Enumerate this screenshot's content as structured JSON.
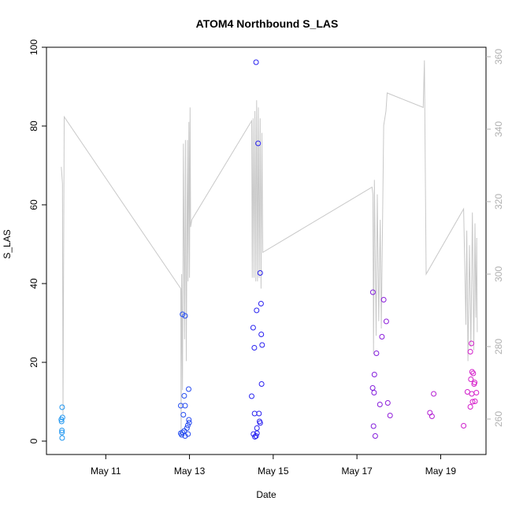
{
  "chart_data": {
    "type": "scatter",
    "title": "ATOM4 Northbound S_LAS",
    "xlabel": "Date",
    "ylabel": "S_LAS",
    "x_tick_labels": [
      "May 11",
      "May 13",
      "May 15",
      "May 17",
      "May 19"
    ],
    "x_ticks": [
      "2020-05-11",
      "2020-05-13",
      "2020-05-15",
      "2020-05-17",
      "2020-05-19"
    ],
    "xlim": [
      "2020-05-09 14:00",
      "2020-05-20 02:00"
    ],
    "ylim": [
      0,
      100
    ],
    "y_ticks": [
      0,
      20,
      40,
      60,
      80,
      100
    ],
    "y2lim": [
      250,
      360
    ],
    "y2_ticks": [
      260,
      280,
      300,
      320,
      340,
      360
    ],
    "grid": false,
    "colors": {
      "line": "#c8c8c8",
      "point_start": "#1e9ff0",
      "point_mid": "#2a1cf0",
      "point_end": "#e01ec8",
      "axis": "#000000",
      "right_axis": "#b0b0b0"
    },
    "series": [
      {
        "axis": "left",
        "kind": "points",
        "points": [
          [
            "2020-05-09 23:00",
            8.6
          ],
          [
            "2020-05-09 23:10",
            6.0
          ],
          [
            "2020-05-09 22:30",
            5.5
          ],
          [
            "2020-05-09 22:40",
            5.0
          ],
          [
            "2020-05-09 22:50",
            2.7
          ],
          [
            "2020-05-09 22:50",
            2.2
          ],
          [
            "2020-05-09 23:00",
            0.8
          ],
          [
            "2020-05-12 19:00",
            9.0
          ],
          [
            "2020-05-12 21:00",
            11.5
          ],
          [
            "2020-05-12 23:30",
            13.2
          ],
          [
            "2020-05-12 21:30",
            9.0
          ],
          [
            "2020-05-12 20:30",
            6.7
          ],
          [
            "2020-05-12 23:40",
            5.4
          ],
          [
            "2020-05-12 23:50",
            4.7
          ],
          [
            "2020-05-12 23:00",
            4.0
          ],
          [
            "2020-05-12 22:30",
            3.3
          ],
          [
            "2020-05-12 21:00",
            2.6
          ],
          [
            "2020-05-12 20:00",
            2.2
          ],
          [
            "2020-05-12 19:00",
            2.0
          ],
          [
            "2020-05-12 19:30",
            1.6
          ],
          [
            "2020-05-12 23:10",
            1.8
          ],
          [
            "2020-05-12 21:30",
            1.3
          ],
          [
            "2020-05-12 20:00",
            32.2
          ],
          [
            "2020-05-12 21:30",
            31.8
          ],
          [
            "2020-05-14 14:10",
            96.2
          ],
          [
            "2020-05-14 15:20",
            75.6
          ],
          [
            "2020-05-14 16:30",
            42.7
          ],
          [
            "2020-05-14 17:00",
            34.9
          ],
          [
            "2020-05-14 14:30",
            33.2
          ],
          [
            "2020-05-14 12:30",
            28.8
          ],
          [
            "2020-05-14 17:10",
            27.1
          ],
          [
            "2020-05-14 17:40",
            24.4
          ],
          [
            "2020-05-14 13:10",
            23.7
          ],
          [
            "2020-05-14 17:20",
            14.5
          ],
          [
            "2020-05-14 11:40",
            11.4
          ],
          [
            "2020-05-14 13:20",
            7.0
          ],
          [
            "2020-05-14 15:50",
            7.0
          ],
          [
            "2020-05-14 16:10",
            5.0
          ],
          [
            "2020-05-14 16:30",
            4.6
          ],
          [
            "2020-05-14 14:40",
            3.3
          ],
          [
            "2020-05-14 14:40",
            2.0
          ],
          [
            "2020-05-14 12:40",
            1.8
          ],
          [
            "2020-05-14 13:30",
            1.1
          ],
          [
            "2020-05-14 14:10",
            1.3
          ],
          [
            "2020-05-17 09:10",
            37.8
          ],
          [
            "2020-05-17 15:20",
            35.9
          ],
          [
            "2020-05-17 16:50",
            30.4
          ],
          [
            "2020-05-17 14:20",
            26.5
          ],
          [
            "2020-05-17 11:10",
            22.3
          ],
          [
            "2020-05-17 10:00",
            16.9
          ],
          [
            "2020-05-17 09:00",
            13.5
          ],
          [
            "2020-05-17 09:50",
            12.3
          ],
          [
            "2020-05-17 17:40",
            9.7
          ],
          [
            "2020-05-17 13:10",
            9.3
          ],
          [
            "2020-05-17 19:00",
            6.5
          ],
          [
            "2020-05-17 09:30",
            3.8
          ],
          [
            "2020-05-17 10:30",
            1.3
          ],
          [
            "2020-05-18 17:50",
            7.2
          ],
          [
            "2020-05-18 19:00",
            6.3
          ],
          [
            "2020-05-18 20:00",
            12.0
          ],
          [
            "2020-05-19 17:40",
            24.8
          ],
          [
            "2020-05-19 17:00",
            22.7
          ],
          [
            "2020-05-19 18:00",
            17.6
          ],
          [
            "2020-05-19 18:40",
            17.2
          ],
          [
            "2020-05-19 17:20",
            15.7
          ],
          [
            "2020-05-19 19:30",
            14.9
          ],
          [
            "2020-05-19 19:10",
            14.5
          ],
          [
            "2020-05-19 15:20",
            12.5
          ],
          [
            "2020-05-19 20:30",
            12.3
          ],
          [
            "2020-05-19 17:50",
            12.0
          ],
          [
            "2020-05-19 19:40",
            10.1
          ],
          [
            "2020-05-19 18:20",
            10.0
          ],
          [
            "2020-05-19 17:00",
            8.7
          ],
          [
            "2020-05-19 13:10",
            3.9
          ]
        ]
      },
      {
        "axis": "right",
        "kind": "line",
        "points": [
          [
            "2020-05-09 22:30",
            329.6
          ],
          [
            "2020-05-09 23:10",
            325.0
          ],
          [
            "2020-05-09 23:30",
            261.0
          ],
          [
            "2020-05-10 00:10",
            343.4
          ],
          [
            "2020-05-12 19:00",
            296.0
          ],
          [
            "2020-05-12 19:10",
            255.0
          ],
          [
            "2020-05-12 19:30",
            300.0
          ],
          [
            "2020-05-12 20:00",
            268.0
          ],
          [
            "2020-05-12 20:30",
            336.0
          ],
          [
            "2020-05-12 21:10",
            282.0
          ],
          [
            "2020-05-12 21:40",
            337.0
          ],
          [
            "2020-05-12 22:10",
            276.0
          ],
          [
            "2020-05-12 22:50",
            337.0
          ],
          [
            "2020-05-12 23:10",
            298.0
          ],
          [
            "2020-05-12 23:40",
            342.0
          ],
          [
            "2020-05-13 00:00",
            299.0
          ],
          [
            "2020-05-13 00:20",
            346.0
          ],
          [
            "2020-05-13 00:40",
            313.0
          ],
          [
            "2020-05-13 01:20",
            315.0
          ],
          [
            "2020-05-14 11:40",
            342.3
          ],
          [
            "2020-05-14 12:00",
            299.0
          ],
          [
            "2020-05-14 12:30",
            343.0
          ],
          [
            "2020-05-14 13:00",
            299.0
          ],
          [
            "2020-05-14 13:30",
            345.0
          ],
          [
            "2020-05-14 14:00",
            298.0
          ],
          [
            "2020-05-14 14:30",
            348.0
          ],
          [
            "2020-05-14 15:00",
            298.0
          ],
          [
            "2020-05-14 15:30",
            346.0
          ],
          [
            "2020-05-14 16:00",
            299.0
          ],
          [
            "2020-05-14 16:30",
            343.0
          ],
          [
            "2020-05-14 17:00",
            296.0
          ],
          [
            "2020-05-14 17:30",
            339.0
          ],
          [
            "2020-05-14 18:00",
            306.0
          ],
          [
            "2020-05-17 08:40",
            324.0
          ],
          [
            "2020-05-17 09:10",
            322.0
          ],
          [
            "2020-05-17 09:30",
            278.0
          ],
          [
            "2020-05-17 10:00",
            326.0
          ],
          [
            "2020-05-17 11:00",
            283.0
          ],
          [
            "2020-05-17 11:40",
            322.0
          ],
          [
            "2020-05-17 12:30",
            287.0
          ],
          [
            "2020-05-17 13:20",
            315.0
          ],
          [
            "2020-05-17 14:00",
            285.0
          ],
          [
            "2020-05-17 15:20",
            341.0
          ],
          [
            "2020-05-17 16:40",
            345.0
          ],
          [
            "2020-05-17 17:20",
            350.0
          ],
          [
            "2020-05-18 14:00",
            346.0
          ],
          [
            "2020-05-18 14:40",
            359.0
          ],
          [
            "2020-05-18 15:40",
            300.0
          ],
          [
            "2020-05-19 13:10",
            318.0
          ],
          [
            "2020-05-19 14:30",
            286.0
          ],
          [
            "2020-05-19 15:00",
            312.0
          ],
          [
            "2020-05-19 15:40",
            276.0
          ],
          [
            "2020-05-19 16:30",
            308.0
          ],
          [
            "2020-05-19 17:20",
            280.0
          ],
          [
            "2020-05-19 18:10",
            317.0
          ],
          [
            "2020-05-19 19:00",
            279.0
          ],
          [
            "2020-05-19 19:40",
            314.0
          ],
          [
            "2020-05-19 20:10",
            288.0
          ],
          [
            "2020-05-19 20:40",
            310.0
          ],
          [
            "2020-05-19 21:00",
            284.0
          ]
        ]
      }
    ]
  }
}
